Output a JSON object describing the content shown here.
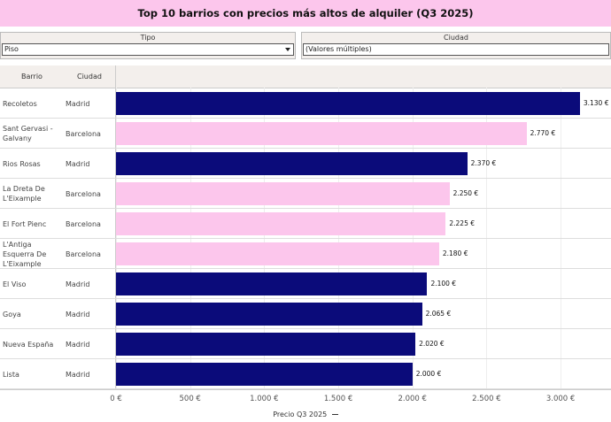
{
  "filters": [
    {
      "label": "Tipo",
      "value": "Piso"
    },
    {
      "label": "Ciudad",
      "value": "(Valores múltiples)"
    }
  ],
  "chart_data": {
    "type": "bar",
    "orientation": "horizontal",
    "title": "Top 10 barrios con precios más altos de alquiler (Q3 2025)",
    "column_headers": [
      "Barrio",
      "Ciudad"
    ],
    "categories": [
      "Recoletos",
      "Sant Gervasi - Galvany",
      "Rios Rosas",
      "La Dreta De L'Eixample",
      "El Fort Pienc",
      "L'Antiga Esquerra De L'Eixample",
      "El Viso",
      "Goya",
      "Nueva España",
      "Lista"
    ],
    "cities": [
      "Madrid",
      "Barcelona",
      "Madrid",
      "Barcelona",
      "Barcelona",
      "Barcelona",
      "Madrid",
      "Madrid",
      "Madrid",
      "Madrid"
    ],
    "values": [
      3130,
      2770,
      2370,
      2250,
      2225,
      2180,
      2100,
      2065,
      2020,
      2000
    ],
    "value_labels": [
      "3.130 €",
      "2.770 €",
      "2.370 €",
      "2.250 €",
      "2.225 €",
      "2.180 €",
      "2.100 €",
      "2.065 €",
      "2.020 €",
      "2.000 €"
    ],
    "city_colors": {
      "Madrid": "#0b0b7a",
      "Barcelona": "#fcc6ec"
    },
    "x_label": "Precio Q3 2025",
    "xlim": [
      0,
      3340
    ],
    "xticks": [
      {
        "value": 0,
        "label": "0 €"
      },
      {
        "value": 500,
        "label": "500 €"
      },
      {
        "value": 1000,
        "label": "1.000 €"
      },
      {
        "value": 1500,
        "label": "1.500 €"
      },
      {
        "value": 2000,
        "label": "2.000 €"
      },
      {
        "value": 2500,
        "label": "2.500 €"
      },
      {
        "value": 3000,
        "label": "3.000 €"
      }
    ],
    "grid": true
  }
}
